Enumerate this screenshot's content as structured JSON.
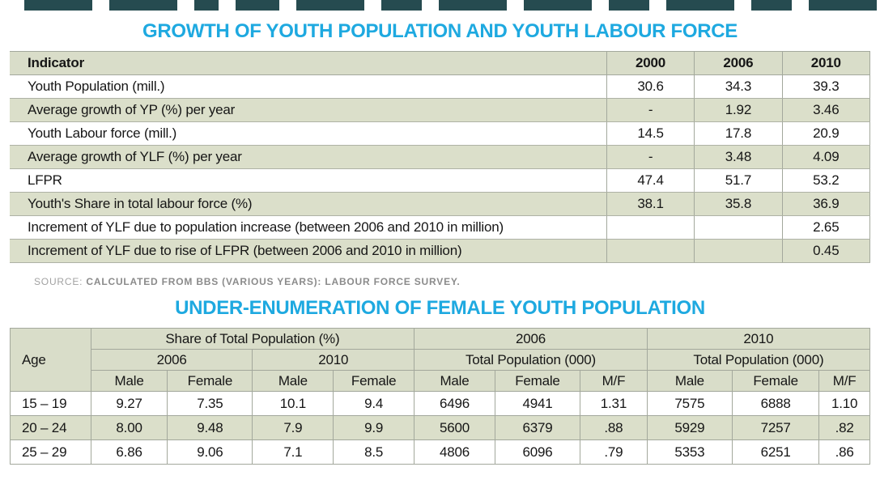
{
  "page": {
    "accent_color": "#1ea9e0",
    "sage_color": "#d9ddc9"
  },
  "chart_data": [
    {
      "type": "table",
      "title": "GROWTH OF YOUTH POPULATION AND YOUTH LABOUR FORCE",
      "columns": [
        "Indicator",
        "2000",
        "2006",
        "2010"
      ],
      "rows": [
        [
          "Youth Population (mill.)",
          "30.6",
          "34.3",
          "39.3"
        ],
        [
          "Average growth of YP (%) per year",
          "-",
          "1.92",
          "3.46"
        ],
        [
          "Youth Labour force (mill.)",
          "14.5",
          "17.8",
          "20.9"
        ],
        [
          "Average growth of YLF (%) per year",
          "-",
          "3.48",
          "4.09"
        ],
        [
          "LFPR",
          "47.4",
          "51.7",
          "53.2"
        ],
        [
          "Youth's Share in total labour force (%)",
          "38.1",
          "35.8",
          "36.9"
        ],
        [
          "Increment of YLF due to population increase (between 2006 and 2010 in million)",
          "",
          "",
          "2.65"
        ],
        [
          "Increment of YLF due to rise of LFPR (between 2006 and 2010 in million)",
          "",
          "",
          "0.45"
        ]
      ],
      "source_prefix": "SOURCE:",
      "source": "CALCULATED FROM BBS (VARIOUS YEARS): LABOUR FORCE SURVEY."
    },
    {
      "type": "table",
      "title": "UNDER-ENUMERATION OF FEMALE YOUTH POPULATION",
      "header": {
        "age_label": "Age",
        "share_group": "Share of Total Population (%)",
        "share_years": [
          "2006",
          "2010"
        ],
        "pop_year_2006": "2006",
        "pop_year_2010": "2010",
        "total_pop_labels": [
          "Total Population (000)",
          "Total Population (000)"
        ],
        "subcolumns": [
          "Male",
          "Female",
          "Male",
          "Female",
          "Male",
          "Female",
          "M/F",
          "Male",
          "Female",
          "M/F"
        ]
      },
      "rows": [
        [
          "15 – 19",
          "9.27",
          "7.35",
          "10.1",
          "9.4",
          "6496",
          "4941",
          "1.31",
          "7575",
          "6888",
          "1.10"
        ],
        [
          "20 – 24",
          "8.00",
          "9.48",
          "7.9",
          "9.9",
          "5600",
          "6379",
          ".88",
          "5929",
          "7257",
          ".82"
        ],
        [
          "25 – 29",
          "6.86",
          "9.06",
          "7.1",
          "8.5",
          "4806",
          "6096",
          ".79",
          "5353",
          "6251",
          ".86"
        ]
      ]
    }
  ]
}
